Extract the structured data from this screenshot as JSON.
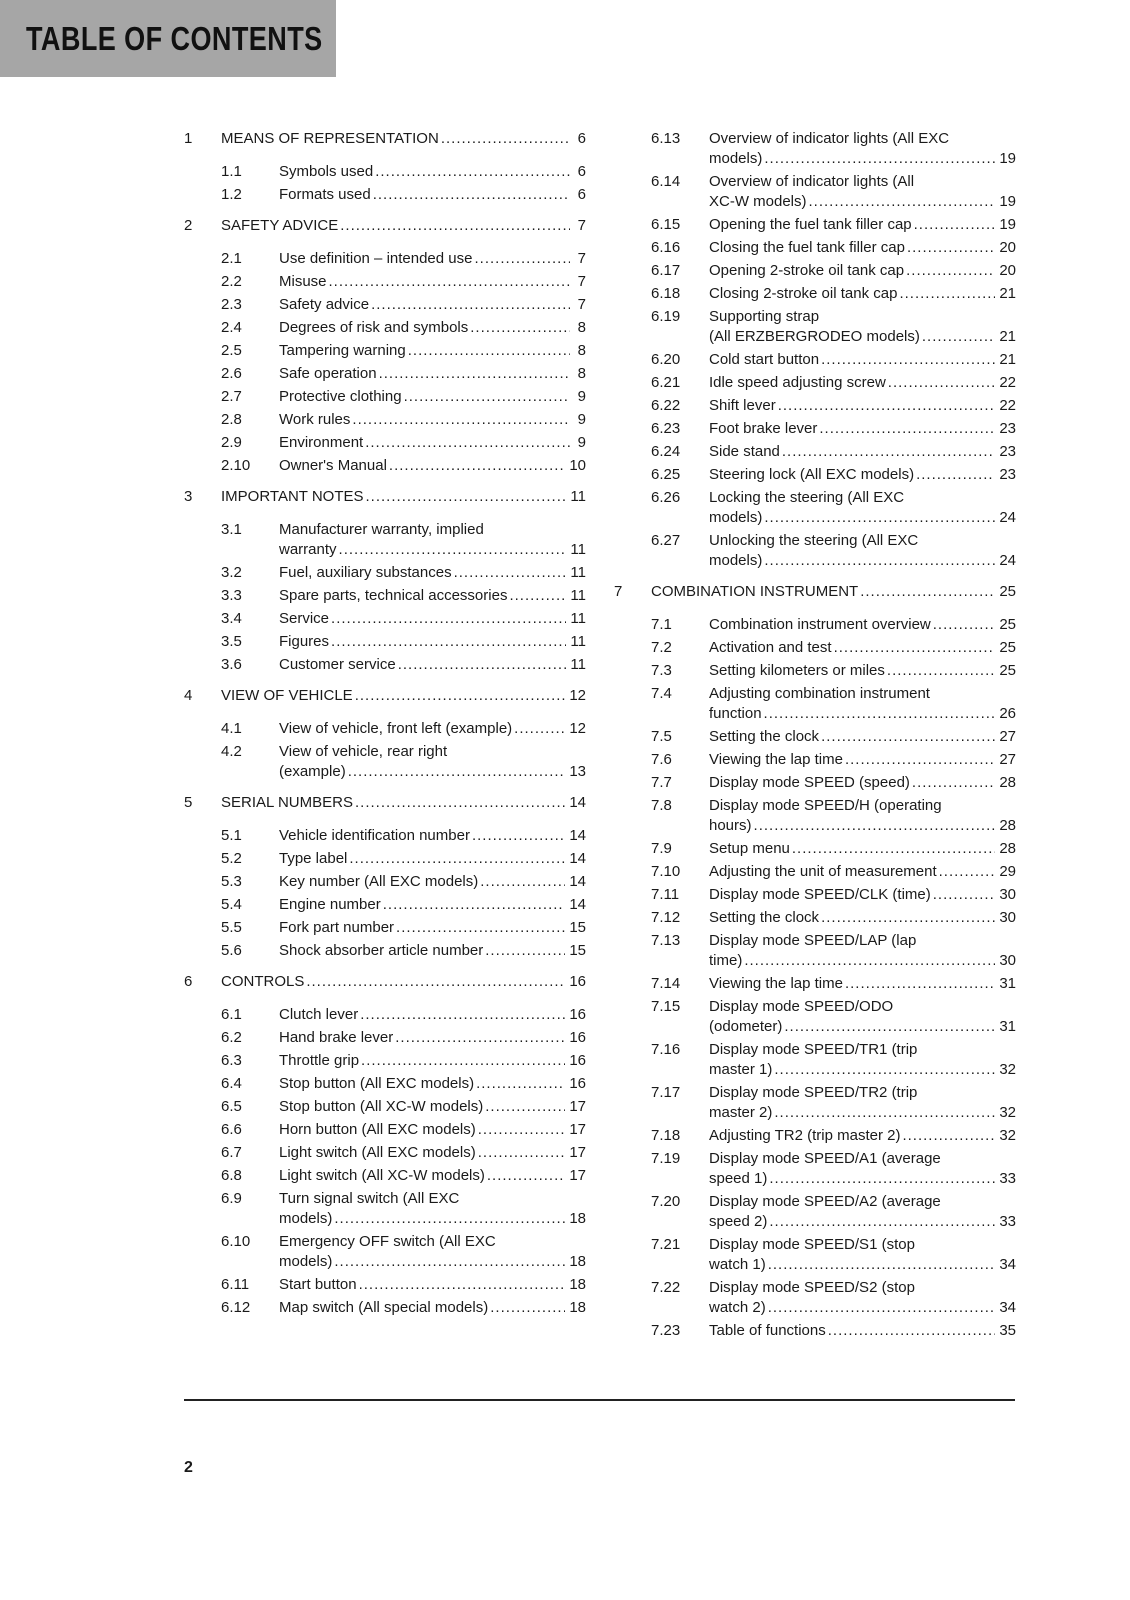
{
  "header": {
    "title": "TABLE OF CONTENTS"
  },
  "page_number": "2",
  "left": [
    {
      "level": "ch",
      "num": "1",
      "title": "MEANS OF REPRESENTATION",
      "page": "6"
    },
    {
      "level": "sub",
      "num": "1.1",
      "title": "Symbols used",
      "page": "6"
    },
    {
      "level": "sub",
      "num": "1.2",
      "title": "Formats used",
      "page": "6"
    },
    {
      "level": "ch",
      "num": "2",
      "title": "SAFETY ADVICE",
      "page": "7"
    },
    {
      "level": "sub",
      "num": "2.1",
      "title": "Use definition – intended use",
      "page": "7"
    },
    {
      "level": "sub",
      "num": "2.2",
      "title": "Misuse",
      "page": "7"
    },
    {
      "level": "sub",
      "num": "2.3",
      "title": "Safety advice",
      "page": "7"
    },
    {
      "level": "sub",
      "num": "2.4",
      "title": "Degrees of risk and symbols",
      "page": "8"
    },
    {
      "level": "sub",
      "num": "2.5",
      "title": "Tampering warning",
      "page": "8"
    },
    {
      "level": "sub",
      "num": "2.6",
      "title": "Safe operation",
      "page": "8"
    },
    {
      "level": "sub",
      "num": "2.7",
      "title": "Protective clothing",
      "page": "9"
    },
    {
      "level": "sub",
      "num": "2.8",
      "title": "Work rules",
      "page": "9"
    },
    {
      "level": "sub",
      "num": "2.9",
      "title": "Environment",
      "page": "9"
    },
    {
      "level": "sub",
      "num": "2.10",
      "title": "Owner's Manual",
      "page": "10"
    },
    {
      "level": "ch",
      "num": "3",
      "title": "IMPORTANT NOTES",
      "page": "11"
    },
    {
      "level": "sub",
      "num": "3.1",
      "title": "Manufacturer warranty, implied",
      "cont": "warranty",
      "page": "11"
    },
    {
      "level": "sub",
      "num": "3.2",
      "title": "Fuel, auxiliary substances",
      "page": "11"
    },
    {
      "level": "sub",
      "num": "3.3",
      "title": "Spare parts, technical accessories",
      "page": "11"
    },
    {
      "level": "sub",
      "num": "3.4",
      "title": "Service",
      "page": "11"
    },
    {
      "level": "sub",
      "num": "3.5",
      "title": "Figures",
      "page": "11"
    },
    {
      "level": "sub",
      "num": "3.6",
      "title": "Customer service",
      "page": "11"
    },
    {
      "level": "ch",
      "num": "4",
      "title": "VIEW OF VEHICLE",
      "page": "12"
    },
    {
      "level": "sub",
      "num": "4.1",
      "title": "View of vehicle, front left (example)",
      "page": "12"
    },
    {
      "level": "sub",
      "num": "4.2",
      "title": "View of vehicle, rear right",
      "cont": "(example)",
      "page": "13"
    },
    {
      "level": "ch",
      "num": "5",
      "title": "SERIAL NUMBERS",
      "page": "14"
    },
    {
      "level": "sub",
      "num": "5.1",
      "title": "Vehicle identification number",
      "page": "14"
    },
    {
      "level": "sub",
      "num": "5.2",
      "title": "Type label",
      "page": "14"
    },
    {
      "level": "sub",
      "num": "5.3",
      "title": "Key number (All EXC models)",
      "page": "14"
    },
    {
      "level": "sub",
      "num": "5.4",
      "title": "Engine number",
      "page": "14"
    },
    {
      "level": "sub",
      "num": "5.5",
      "title": "Fork part number",
      "page": "15"
    },
    {
      "level": "sub",
      "num": "5.6",
      "title": "Shock absorber article number",
      "page": "15"
    },
    {
      "level": "ch",
      "num": "6",
      "title": "CONTROLS",
      "page": "16"
    },
    {
      "level": "sub",
      "num": "6.1",
      "title": "Clutch lever",
      "page": "16"
    },
    {
      "level": "sub",
      "num": "6.2",
      "title": "Hand brake lever",
      "page": "16"
    },
    {
      "level": "sub",
      "num": "6.3",
      "title": "Throttle grip",
      "page": "16"
    },
    {
      "level": "sub",
      "num": "6.4",
      "title": "Stop button (All EXC models)",
      "page": "16"
    },
    {
      "level": "sub",
      "num": "6.5",
      "title": "Stop button (All XC-W models)",
      "page": "17"
    },
    {
      "level": "sub",
      "num": "6.6",
      "title": "Horn button (All EXC models)",
      "page": "17"
    },
    {
      "level": "sub",
      "num": "6.7",
      "title": "Light switch (All EXC models)",
      "page": "17"
    },
    {
      "level": "sub",
      "num": "6.8",
      "title": "Light switch (All XC-W models)",
      "page": "17"
    },
    {
      "level": "sub",
      "num": "6.9",
      "title": "Turn signal switch (All EXC",
      "cont": "models)",
      "page": "18"
    },
    {
      "level": "sub",
      "num": "6.10",
      "title": "Emergency OFF switch (All EXC",
      "cont": "models)",
      "page": "18"
    },
    {
      "level": "sub",
      "num": "6.11",
      "title": "Start button",
      "page": "18"
    },
    {
      "level": "sub",
      "num": "6.12",
      "title": "Map switch (All special models)",
      "page": "18"
    }
  ],
  "right": [
    {
      "level": "sub",
      "num": "6.13",
      "title": "Overview of indicator lights (All EXC",
      "cont": "models)",
      "page": "19"
    },
    {
      "level": "sub",
      "num": "6.14",
      "title": "Overview of indicator lights (All",
      "cont": "XC-W models)",
      "page": "19"
    },
    {
      "level": "sub",
      "num": "6.15",
      "title": "Opening the fuel tank filler cap",
      "page": "19"
    },
    {
      "level": "sub",
      "num": "6.16",
      "title": "Closing the fuel tank filler cap",
      "page": "20"
    },
    {
      "level": "sub",
      "num": "6.17",
      "title": "Opening 2-stroke oil tank cap",
      "page": "20"
    },
    {
      "level": "sub",
      "num": "6.18",
      "title": "Closing 2-stroke oil tank cap",
      "page": "21"
    },
    {
      "level": "sub",
      "num": "6.19",
      "title": "Supporting strap",
      "cont": "(All ERZBERGRODEO models)",
      "page": "21"
    },
    {
      "level": "sub",
      "num": "6.20",
      "title": "Cold start button",
      "page": "21"
    },
    {
      "level": "sub",
      "num": "6.21",
      "title": "Idle speed adjusting screw",
      "page": "22"
    },
    {
      "level": "sub",
      "num": "6.22",
      "title": "Shift lever",
      "page": "22"
    },
    {
      "level": "sub",
      "num": "6.23",
      "title": "Foot brake lever",
      "page": "23"
    },
    {
      "level": "sub",
      "num": "6.24",
      "title": "Side stand",
      "page": "23"
    },
    {
      "level": "sub",
      "num": "6.25",
      "title": "Steering lock (All EXC models)",
      "page": "23"
    },
    {
      "level": "sub",
      "num": "6.26",
      "title": "Locking the steering (All EXC",
      "cont": "models)",
      "page": "24"
    },
    {
      "level": "sub",
      "num": "6.27",
      "title": "Unlocking the steering (All EXC",
      "cont": "models)",
      "page": "24"
    },
    {
      "level": "ch",
      "num": "7",
      "title": "COMBINATION INSTRUMENT",
      "page": "25"
    },
    {
      "level": "sub",
      "num": "7.1",
      "title": "Combination instrument overview",
      "page": "25"
    },
    {
      "level": "sub",
      "num": "7.2",
      "title": "Activation and test",
      "page": "25"
    },
    {
      "level": "sub",
      "num": "7.3",
      "title": "Setting kilometers or miles",
      "page": "25"
    },
    {
      "level": "sub",
      "num": "7.4",
      "title": "Adjusting combination instrument",
      "cont": "function",
      "page": "26"
    },
    {
      "level": "sub",
      "num": "7.5",
      "title": "Setting the clock",
      "page": "27"
    },
    {
      "level": "sub",
      "num": "7.6",
      "title": "Viewing the lap time",
      "page": "27"
    },
    {
      "level": "sub",
      "num": "7.7",
      "title": "Display mode SPEED (speed)",
      "page": "28"
    },
    {
      "level": "sub",
      "num": "7.8",
      "title": "Display mode SPEED/H (operating",
      "cont": "hours)",
      "page": "28"
    },
    {
      "level": "sub",
      "num": "7.9",
      "title": "Setup menu",
      "page": "28"
    },
    {
      "level": "sub",
      "num": "7.10",
      "title": "Adjusting the unit of measurement",
      "page": "29"
    },
    {
      "level": "sub",
      "num": "7.11",
      "title": "Display mode SPEED/CLK (time)",
      "page": "30"
    },
    {
      "level": "sub",
      "num": "7.12",
      "title": "Setting the clock",
      "page": "30"
    },
    {
      "level": "sub",
      "num": "7.13",
      "title": "Display mode SPEED/LAP (lap",
      "cont": "time)",
      "page": "30"
    },
    {
      "level": "sub",
      "num": "7.14",
      "title": "Viewing the lap time",
      "page": "31"
    },
    {
      "level": "sub",
      "num": "7.15",
      "title": "Display mode SPEED/ODO",
      "cont": "(odometer)",
      "page": "31"
    },
    {
      "level": "sub",
      "num": "7.16",
      "title": "Display mode SPEED/TR1 (trip",
      "cont": "master 1)",
      "page": "32"
    },
    {
      "level": "sub",
      "num": "7.17",
      "title": "Display mode SPEED/TR2 (trip",
      "cont": "master 2)",
      "page": "32"
    },
    {
      "level": "sub",
      "num": "7.18",
      "title": "Adjusting TR2 (trip master 2)",
      "page": "32"
    },
    {
      "level": "sub",
      "num": "7.19",
      "title": "Display mode SPEED/A1 (average",
      "cont": "speed 1)",
      "page": "33"
    },
    {
      "level": "sub",
      "num": "7.20",
      "title": "Display mode SPEED/A2 (average",
      "cont": "speed 2)",
      "page": "33"
    },
    {
      "level": "sub",
      "num": "7.21",
      "title": "Display mode SPEED/S1 (stop",
      "cont": "watch 1)",
      "page": "34"
    },
    {
      "level": "sub",
      "num": "7.22",
      "title": "Display mode SPEED/S2 (stop",
      "cont": "watch 2)",
      "page": "34"
    },
    {
      "level": "sub",
      "num": "7.23",
      "title": "Table of functions",
      "page": "35"
    }
  ]
}
